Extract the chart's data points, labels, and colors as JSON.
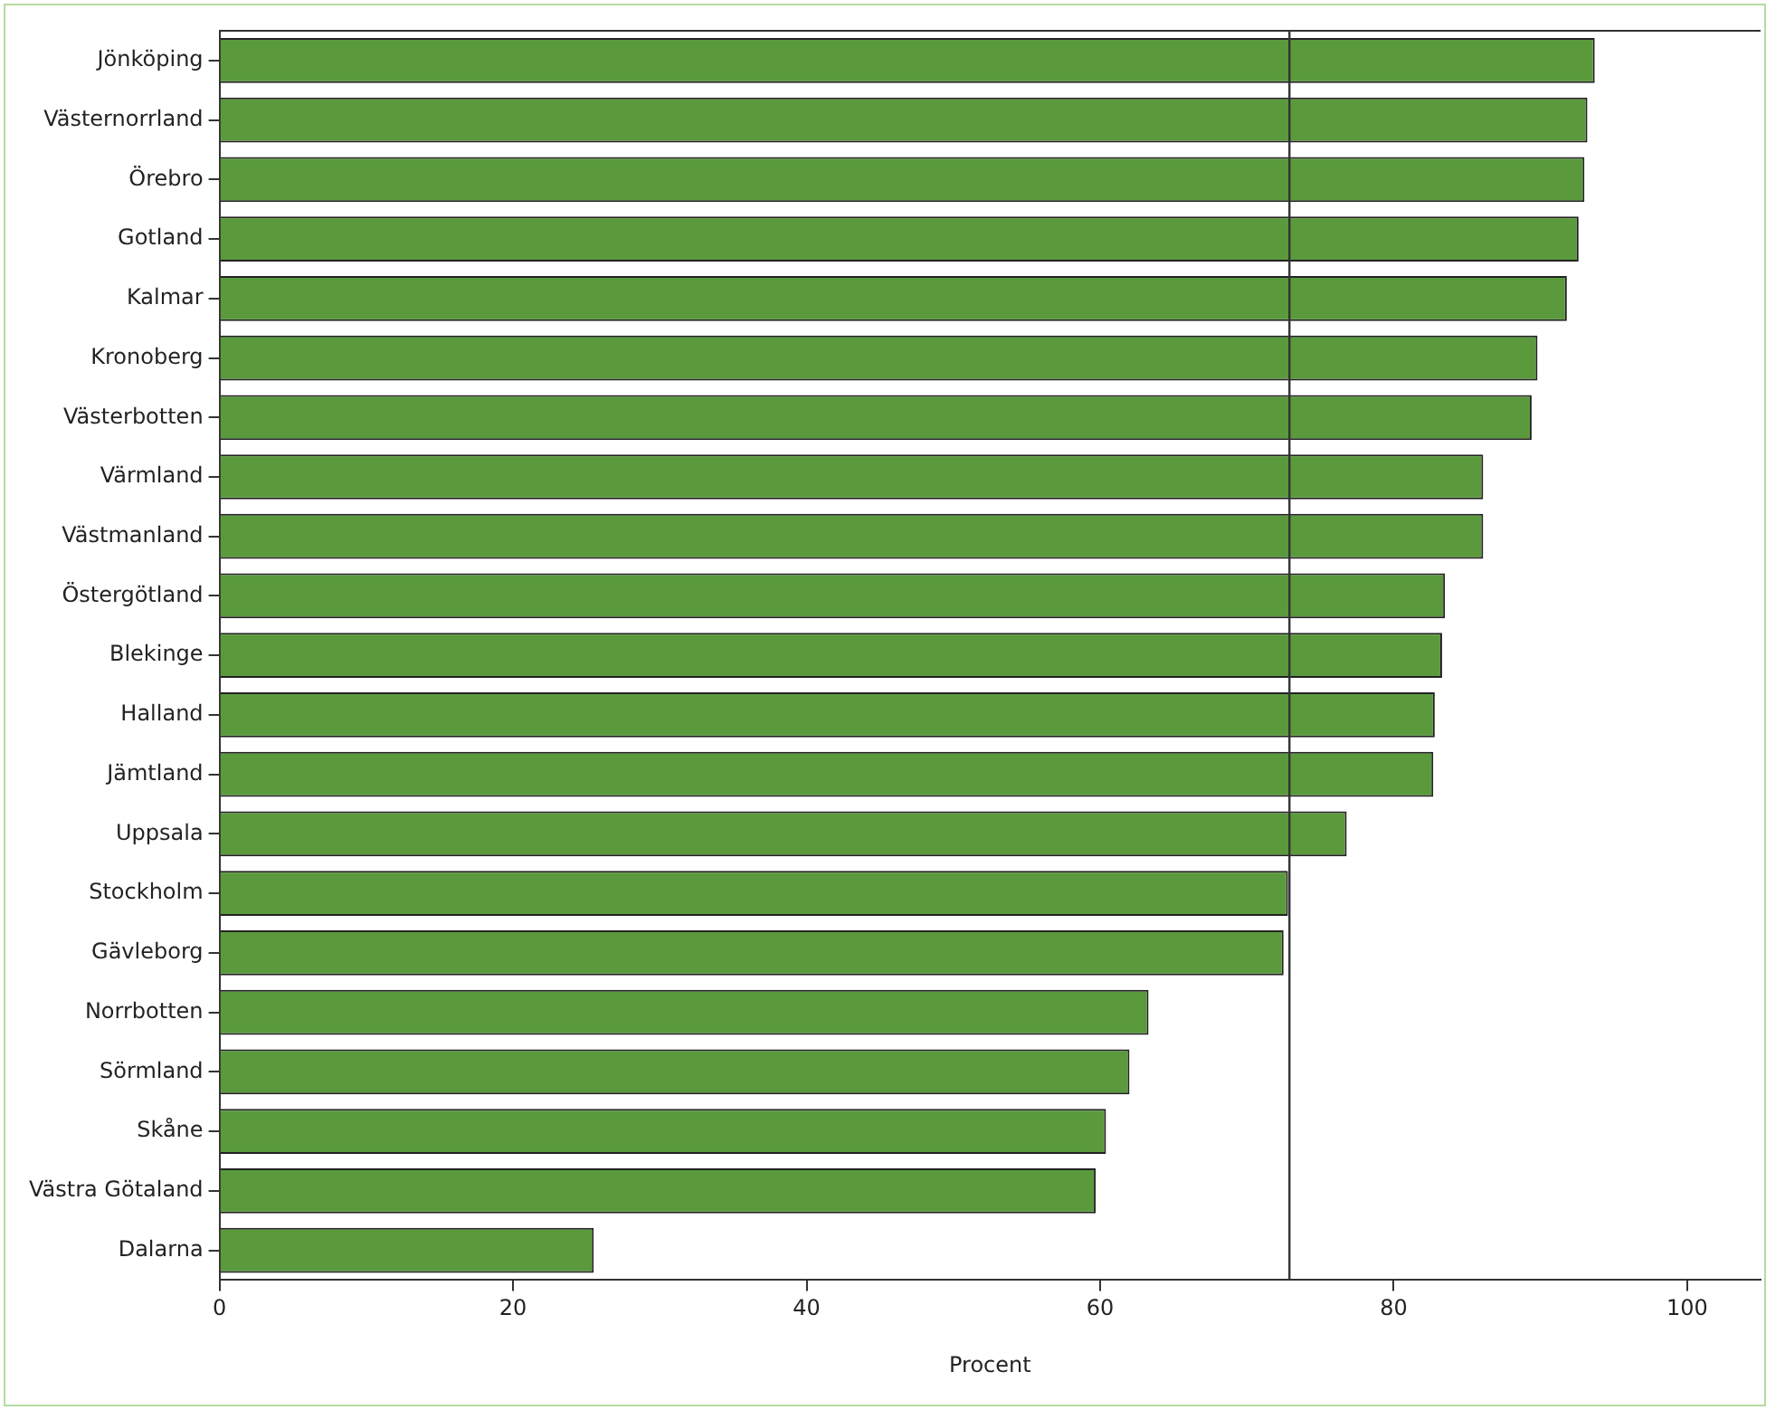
{
  "chart_data": {
    "type": "bar",
    "orientation": "horizontal",
    "xlabel": "Procent",
    "categories": [
      "Jönköping",
      "Västernorrland",
      "Örebro",
      "Gotland",
      "Kalmar",
      "Kronoberg",
      "Västerbotten",
      "Värmland",
      "Västmanland",
      "Östergötland",
      "Blekinge",
      "Halland",
      "Jämtland",
      "Uppsala",
      "Stockholm",
      "Gävleborg",
      "Norrbotten",
      "Sörmland",
      "Skåne",
      "Västra Götaland",
      "Dalarna"
    ],
    "values": [
      93.7,
      93.2,
      93.0,
      92.6,
      91.8,
      89.8,
      89.4,
      86.1,
      86.1,
      83.5,
      83.3,
      82.8,
      82.7,
      76.8,
      72.8,
      72.5,
      63.3,
      62.0,
      60.4,
      59.7,
      25.5
    ],
    "color": "#5a9a3c",
    "xlim": [
      0,
      105
    ],
    "xticks": [
      0,
      20,
      40,
      60,
      80,
      100
    ],
    "ref_lines": [
      {
        "axis": "x",
        "value": 72.9,
        "color": "#333333"
      }
    ],
    "grid": false,
    "legend": false
  }
}
